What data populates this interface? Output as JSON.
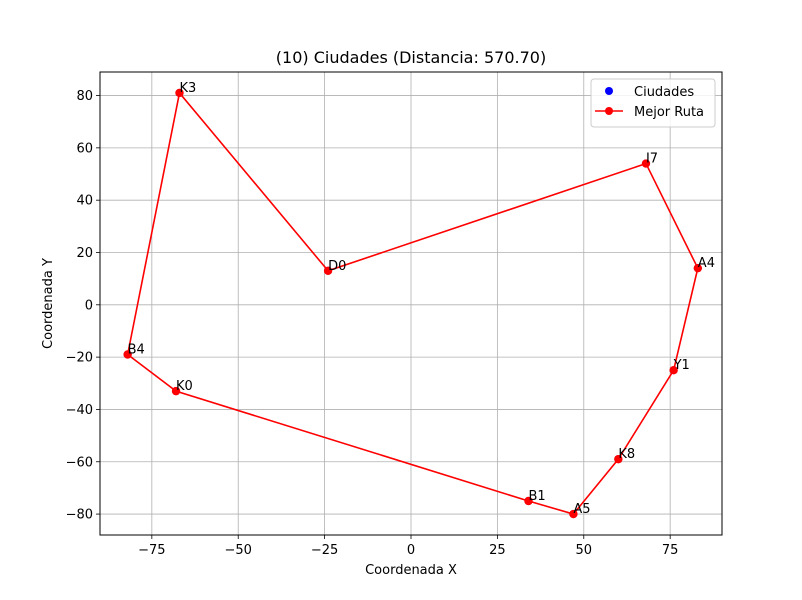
{
  "chart_data": {
    "type": "scatter",
    "title": "(10) Ciudades (Distancia: 570.70)",
    "xlabel": "Coordenada X",
    "ylabel": "Coordenada Y",
    "xlim": [
      -90,
      90
    ],
    "ylim": [
      -88,
      89
    ],
    "xticks": [
      -75,
      -50,
      -25,
      0,
      25,
      50,
      75
    ],
    "yticks": [
      -80,
      -60,
      -40,
      -20,
      0,
      20,
      40,
      60,
      80
    ],
    "grid": true,
    "legend_position": "top-right",
    "series": [
      {
        "name": "Ciudades",
        "kind": "scatter",
        "color": "#0000ff",
        "points": [
          {
            "label": "K3",
            "x": -67,
            "y": 81
          },
          {
            "label": "D0",
            "x": -24,
            "y": 13
          },
          {
            "label": "I7",
            "x": 68,
            "y": 54
          },
          {
            "label": "A4",
            "x": 83,
            "y": 14
          },
          {
            "label": "Y1",
            "x": 76,
            "y": -25
          },
          {
            "label": "K8",
            "x": 60,
            "y": -59
          },
          {
            "label": "A5",
            "x": 47,
            "y": -80
          },
          {
            "label": "B1",
            "x": 34,
            "y": -75
          },
          {
            "label": "K0",
            "x": -68,
            "y": -33
          },
          {
            "label": "B4",
            "x": -82,
            "y": -19
          }
        ]
      },
      {
        "name": "Mejor Ruta",
        "kind": "line",
        "color": "#ff0000",
        "route": [
          "K3",
          "D0",
          "I7",
          "A4",
          "Y1",
          "K8",
          "A5",
          "B1",
          "K0",
          "B4",
          "K3"
        ]
      }
    ]
  }
}
